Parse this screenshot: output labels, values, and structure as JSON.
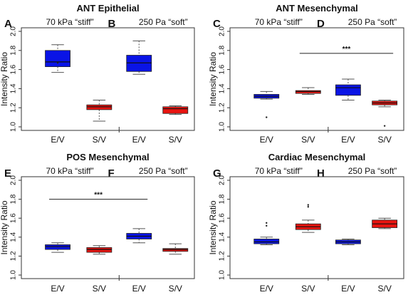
{
  "colors": {
    "blue": "#0a14e6",
    "red": "#e81410",
    "axis": "#333333",
    "whisker": "#555555"
  },
  "chart_data": [
    {
      "type": "box",
      "title": "ANT Epithelial",
      "panel_letters": [
        "A",
        "B"
      ],
      "conditions": [
        "70 kPa “stiff”",
        "250 Pa “soft”"
      ],
      "ylabel": "Intensity Ratio",
      "ylim": [
        1.0,
        2.0
      ],
      "yticks": [
        "1.0",
        "1.2",
        "1.4",
        "1.6",
        "1.8",
        "2.0"
      ],
      "categories": [
        "E/V",
        "S/V",
        "E/V",
        "S/V"
      ],
      "boxes": [
        {
          "group": 0,
          "label": "E/V",
          "color": "blue",
          "min": 1.57,
          "q1": 1.63,
          "median": 1.68,
          "q3": 1.8,
          "max": 1.86,
          "outliers": [
            1.67
          ]
        },
        {
          "group": 0,
          "label": "S/V",
          "color": "red",
          "min": 1.06,
          "q1": 1.18,
          "median": 1.21,
          "q3": 1.23,
          "max": 1.28,
          "outliers": []
        },
        {
          "group": 1,
          "label": "E/V",
          "color": "blue",
          "min": 1.55,
          "q1": 1.58,
          "median": 1.67,
          "q3": 1.75,
          "max": 1.9,
          "outliers": []
        },
        {
          "group": 1,
          "label": "S/V",
          "color": "red",
          "min": 1.13,
          "q1": 1.14,
          "median": 1.19,
          "q3": 1.21,
          "max": 1.22,
          "outliers": []
        }
      ],
      "significance": []
    },
    {
      "type": "box",
      "title": "ANT Mesenchymal",
      "panel_letters": [
        "C",
        "D"
      ],
      "conditions": [
        "70 kPa “stiff”",
        "250 Pa “soft”"
      ],
      "ylabel": "Intensity Ratio",
      "ylim": [
        1.0,
        2.0
      ],
      "yticks": [
        "1.0",
        "1.2",
        "1.4",
        "1.6",
        "1.8",
        "2.0"
      ],
      "categories": [
        "E/V",
        "S/V",
        "E/V",
        "S/V"
      ],
      "boxes": [
        {
          "group": 0,
          "label": "E/V",
          "color": "blue",
          "min": 1.29,
          "q1": 1.3,
          "median": 1.32,
          "q3": 1.34,
          "max": 1.37,
          "outliers": [
            1.1
          ]
        },
        {
          "group": 0,
          "label": "S/V",
          "color": "red",
          "min": 1.34,
          "q1": 1.35,
          "median": 1.37,
          "q3": 1.38,
          "max": 1.41,
          "outliers": []
        },
        {
          "group": 1,
          "label": "E/V",
          "color": "blue",
          "min": 1.28,
          "q1": 1.33,
          "median": 1.41,
          "q3": 1.44,
          "max": 1.5,
          "outliers": []
        },
        {
          "group": 1,
          "label": "S/V",
          "color": "red",
          "min": 1.21,
          "q1": 1.23,
          "median": 1.25,
          "q3": 1.27,
          "max": 1.28,
          "outliers": [
            1.01
          ]
        }
      ],
      "significance": [
        {
          "from": 1,
          "to": 3,
          "y": 1.77,
          "label": "***"
        }
      ]
    },
    {
      "type": "box",
      "title": "POS Mesenchymal",
      "panel_letters": [
        "E",
        "F"
      ],
      "conditions": [
        "70 kPa “stiff”",
        "250 Pa “soft”"
      ],
      "ylabel": "Intensity Ratio",
      "ylim": [
        1.0,
        2.0
      ],
      "yticks": [
        "1.0",
        "1.2",
        "1.4",
        "1.6",
        "1.8",
        "2.0"
      ],
      "categories": [
        "E/V",
        "S/V",
        "E/V",
        "S/V"
      ],
      "boxes": [
        {
          "group": 0,
          "label": "E/V",
          "color": "blue",
          "min": 1.24,
          "q1": 1.27,
          "median": 1.3,
          "q3": 1.32,
          "max": 1.34,
          "outliers": []
        },
        {
          "group": 0,
          "label": "S/V",
          "color": "red",
          "min": 1.22,
          "q1": 1.24,
          "median": 1.27,
          "q3": 1.29,
          "max": 1.31,
          "outliers": []
        },
        {
          "group": 1,
          "label": "E/V",
          "color": "blue",
          "min": 1.34,
          "q1": 1.38,
          "median": 1.41,
          "q3": 1.44,
          "max": 1.49,
          "outliers": []
        },
        {
          "group": 1,
          "label": "S/V",
          "color": "red",
          "min": 1.22,
          "q1": 1.25,
          "median": 1.27,
          "q3": 1.28,
          "max": 1.33,
          "outliers": []
        }
      ],
      "significance": [
        {
          "from": 0,
          "to": 2,
          "y": 1.8,
          "label": "***"
        }
      ]
    },
    {
      "type": "box",
      "title": "Cardiac Mesenchymal",
      "panel_letters": [
        "G",
        "H"
      ],
      "conditions": [
        "70 kPa “stiff”",
        "250 Pa “soft”"
      ],
      "ylabel": "Intensity Ratio",
      "ylim": [
        1.0,
        2.0
      ],
      "yticks": [
        "1.0",
        "1.2",
        "1.4",
        "1.6",
        "1.8",
        "2.0"
      ],
      "categories": [
        "E/V",
        "S/V",
        "E/V",
        "S/V"
      ],
      "boxes": [
        {
          "group": 0,
          "label": "E/V",
          "color": "blue",
          "min": 1.32,
          "q1": 1.33,
          "median": 1.35,
          "q3": 1.38,
          "max": 1.4,
          "outliers": [
            1.52,
            1.55
          ]
        },
        {
          "group": 0,
          "label": "S/V",
          "color": "red",
          "min": 1.45,
          "q1": 1.48,
          "median": 1.51,
          "q3": 1.54,
          "max": 1.58,
          "outliers": [
            1.72,
            1.74
          ]
        },
        {
          "group": 1,
          "label": "E/V",
          "color": "blue",
          "min": 1.32,
          "q1": 1.33,
          "median": 1.35,
          "q3": 1.37,
          "max": 1.38,
          "outliers": []
        },
        {
          "group": 1,
          "label": "S/V",
          "color": "red",
          "min": 1.49,
          "q1": 1.5,
          "median": 1.54,
          "q3": 1.58,
          "max": 1.6,
          "outliers": []
        }
      ],
      "significance": []
    }
  ]
}
